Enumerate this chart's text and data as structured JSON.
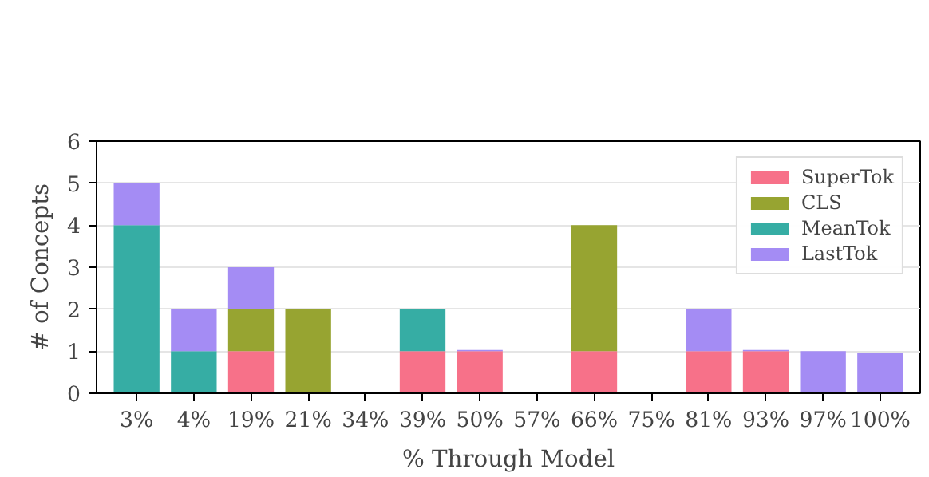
{
  "chart_data": {
    "type": "bar",
    "stacked": true,
    "xlabel": "% Through Model",
    "ylabel": "# of Concepts",
    "categories": [
      "3%",
      "4%",
      "19%",
      "21%",
      "34%",
      "39%",
      "50%",
      "57%",
      "66%",
      "75%",
      "81%",
      "93%",
      "97%",
      "100%"
    ],
    "series": [
      {
        "name": "SuperTok",
        "color": "#f77189",
        "values": [
          0,
          0,
          1,
          0,
          0,
          1,
          1,
          0,
          1,
          0,
          1,
          1,
          0,
          0
        ]
      },
      {
        "name": "CLS",
        "color": "#97a431",
        "values": [
          0,
          0,
          1,
          2,
          0,
          0,
          0,
          0,
          3,
          0,
          0,
          0,
          0,
          0
        ]
      },
      {
        "name": "MeanTok",
        "color": "#36ada4",
        "values": [
          4,
          1,
          0,
          0,
          0,
          1,
          0,
          0,
          0,
          0,
          0,
          0,
          0,
          0
        ]
      },
      {
        "name": "LastTok",
        "color": "#a48cf4",
        "values": [
          1,
          1,
          1,
          0,
          0,
          0,
          0.03,
          0,
          0,
          0,
          1,
          0.03,
          1,
          0.96
        ]
      }
    ],
    "ylim": [
      0,
      6
    ],
    "yticks": [
      0,
      1,
      2,
      3,
      4,
      5,
      6
    ],
    "grid": "y",
    "legend": "top right"
  }
}
